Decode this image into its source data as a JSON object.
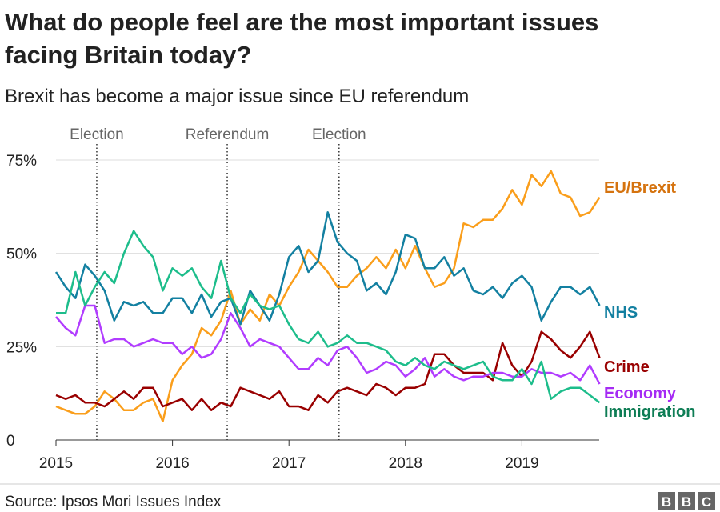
{
  "chart_data": {
    "type": "line",
    "title": "What do people feel are the most important issues facing Britain today?",
    "subtitle": "Brexit has become a major issue since EU referendum",
    "xlabel": "",
    "ylabel": "",
    "x_start": "2015-01",
    "x_frequency": "monthly",
    "x_ticks": [
      "2015",
      "2016",
      "2017",
      "2018",
      "2019"
    ],
    "y_ticks": [
      "0",
      "25%",
      "50%",
      "75%"
    ],
    "ylim": [
      0,
      75
    ],
    "grid": "horizontal",
    "legend": "direct labels at right end of lines",
    "events": [
      {
        "label": "Election",
        "x": 2015.35
      },
      {
        "label": "Referendum",
        "x": 2016.47
      },
      {
        "label": "Election",
        "x": 2017.43
      }
    ],
    "series": [
      {
        "name": "EU/Brexit",
        "color": "#fa9e1b",
        "label_color": "#d5730f",
        "values": [
          9,
          8,
          7,
          7,
          9,
          13,
          11,
          8,
          8,
          10,
          11,
          5,
          16,
          20,
          23,
          30,
          28,
          32,
          40,
          31,
          35,
          32,
          39,
          36,
          41,
          45,
          51,
          48,
          45,
          41,
          41,
          44,
          46,
          49,
          46,
          51,
          46,
          52,
          46,
          41,
          42,
          46,
          58,
          57,
          59,
          59,
          62,
          67,
          63,
          71,
          68,
          72,
          66,
          65,
          60,
          61,
          65
        ]
      },
      {
        "name": "NHS",
        "color": "#1380a1",
        "label_color": "#1380a1",
        "values": [
          45,
          41,
          38,
          47,
          44,
          40,
          32,
          37,
          36,
          37,
          34,
          34,
          38,
          38,
          34,
          39,
          33,
          37,
          38,
          31,
          40,
          36,
          32,
          39,
          49,
          52,
          45,
          48,
          61,
          53,
          50,
          48,
          40,
          42,
          39,
          45,
          55,
          54,
          46,
          46,
          49,
          44,
          46,
          40,
          39,
          41,
          38,
          42,
          44,
          41,
          32,
          37,
          41,
          41,
          39,
          41,
          36
        ]
      },
      {
        "name": "Crime",
        "color": "#990000",
        "label_color": "#990000",
        "values": [
          12,
          11,
          12,
          10,
          10,
          9,
          11,
          13,
          11,
          14,
          14,
          9,
          10,
          11,
          8,
          11,
          8,
          10,
          9,
          14,
          13,
          12,
          11,
          13,
          9,
          9,
          8,
          12,
          10,
          13,
          14,
          13,
          12,
          15,
          14,
          12,
          14,
          14,
          15,
          23,
          23,
          20,
          18,
          18,
          18,
          16,
          26,
          20,
          17,
          21,
          29,
          27,
          24,
          22,
          25,
          29,
          22
        ]
      },
      {
        "name": "Economy",
        "color": "#b13cff",
        "label_color": "#a52bf4",
        "values": [
          33,
          30,
          28,
          36,
          36,
          26,
          27,
          27,
          25,
          26,
          27,
          26,
          26,
          23,
          25,
          22,
          23,
          27,
          34,
          30,
          25,
          27,
          26,
          25,
          22,
          19,
          19,
          22,
          20,
          24,
          25,
          22,
          18,
          19,
          21,
          20,
          17,
          19,
          22,
          17,
          19,
          17,
          16,
          17,
          17,
          18,
          18,
          17,
          17,
          19,
          18,
          18,
          17,
          18,
          16,
          20,
          15
        ]
      },
      {
        "name": "Immigration",
        "color": "#1dbd8b",
        "label_color": "#0e7d55",
        "values": [
          34,
          34,
          45,
          36,
          41,
          45,
          42,
          50,
          56,
          52,
          49,
          40,
          46,
          44,
          46,
          41,
          38,
          48,
          38,
          34,
          39,
          36,
          35,
          36,
          31,
          27,
          26,
          29,
          25,
          26,
          28,
          26,
          26,
          25,
          24,
          21,
          20,
          22,
          20,
          19,
          21,
          20,
          19,
          20,
          21,
          17,
          16,
          16,
          19,
          15,
          21,
          11,
          13,
          14,
          14,
          12,
          10
        ]
      }
    ]
  },
  "source": "Source: Ipsos Mori Issues Index",
  "logo": "BBC"
}
